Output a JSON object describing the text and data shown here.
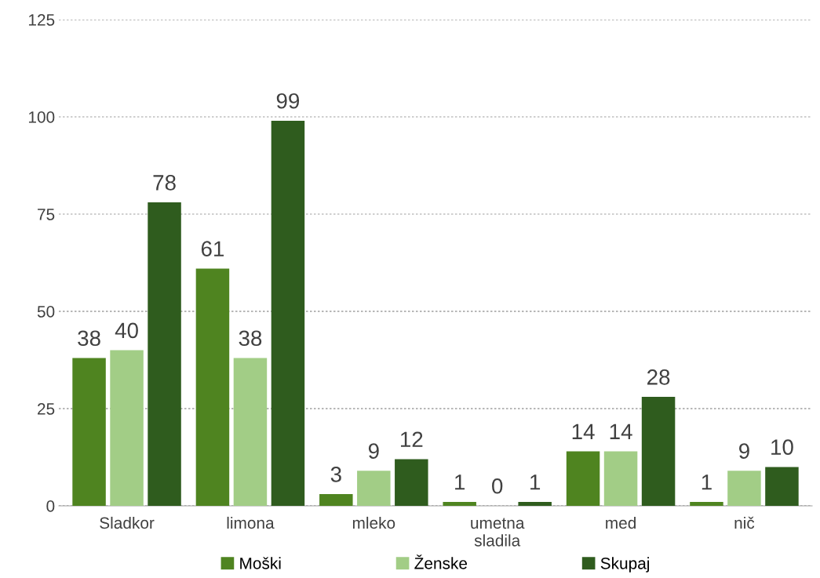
{
  "chart_data": {
    "type": "bar",
    "categories": [
      "Sladkor",
      "limona",
      "mleko",
      "umetna\nsladila",
      "med",
      "nič"
    ],
    "series": [
      {
        "name": "Moški",
        "color": "#4f8420",
        "values": [
          38,
          61,
          3,
          1,
          14,
          1
        ]
      },
      {
        "name": "Ženske",
        "color": "#a2cd86",
        "values": [
          40,
          38,
          9,
          0,
          14,
          9
        ]
      },
      {
        "name": "Skupaj",
        "color": "#2f5c1e",
        "values": [
          78,
          99,
          12,
          1,
          28,
          10
        ]
      }
    ],
    "ylim": [
      0,
      125
    ],
    "yticks": [
      0,
      25,
      50,
      75,
      100,
      125
    ],
    "grid": "y",
    "legend": "bottom",
    "data_labels": true
  }
}
